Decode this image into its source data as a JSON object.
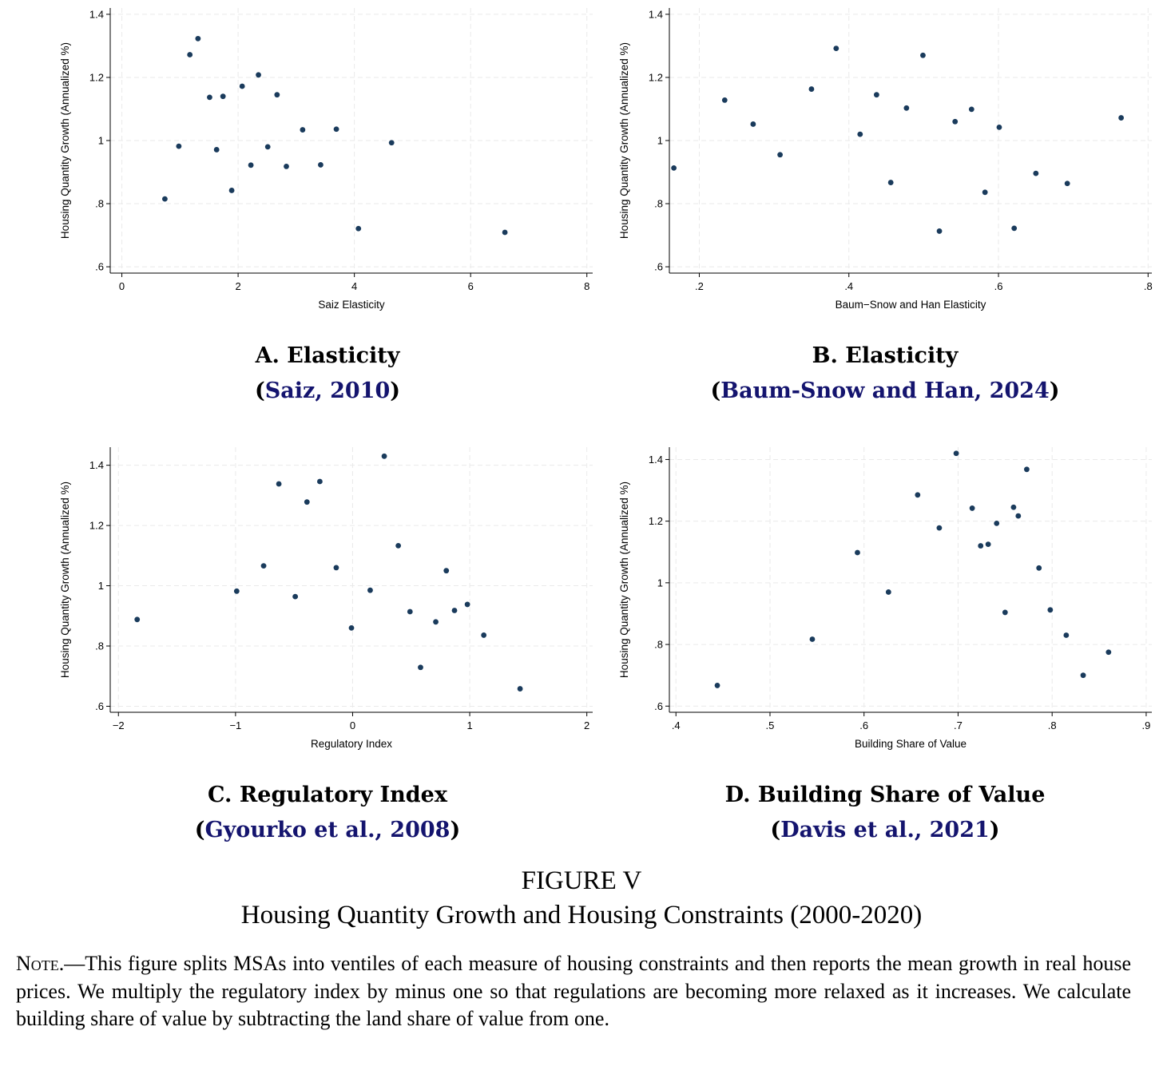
{
  "chart_data": [
    {
      "type": "scatter",
      "xlabel": "Saiz Elasticity",
      "ylabel": "Housing Quantity Growth (Annualized %)",
      "xlim": [
        -0.2,
        8.1
      ],
      "ylim": [
        0.58,
        1.42
      ],
      "xticks": [
        0,
        2,
        4,
        6,
        8
      ],
      "xtick_labels": [
        "0",
        "2",
        "4",
        "6",
        "8"
      ],
      "yticks": [
        0.6,
        0.8,
        1.0,
        1.2,
        1.4
      ],
      "ytick_labels": [
        ".6",
        ".8",
        "1",
        "1.2",
        "1.4"
      ],
      "grid": true,
      "caption_title": "A. Elasticity",
      "caption_open": "(",
      "caption_cite": "Saiz, 2010",
      "caption_close": ")",
      "points": [
        [
          0.74,
          0.815
        ],
        [
          0.98,
          0.982
        ],
        [
          1.17,
          1.272
        ],
        [
          1.31,
          1.323
        ],
        [
          1.51,
          1.137
        ],
        [
          1.63,
          0.971
        ],
        [
          1.74,
          1.14
        ],
        [
          1.89,
          0.842
        ],
        [
          2.07,
          1.172
        ],
        [
          2.22,
          0.922
        ],
        [
          2.35,
          1.208
        ],
        [
          2.51,
          0.98
        ],
        [
          2.67,
          1.145
        ],
        [
          2.83,
          0.918
        ],
        [
          3.11,
          1.034
        ],
        [
          3.42,
          0.923
        ],
        [
          3.69,
          1.036
        ],
        [
          4.07,
          0.721
        ],
        [
          4.64,
          0.993
        ],
        [
          6.59,
          0.709
        ]
      ]
    },
    {
      "type": "scatter",
      "xlabel": "Baum−Snow and Han Elasticity",
      "ylabel": "Housing Quantity Growth (Annualized %)",
      "xlim": [
        0.16,
        0.805
      ],
      "ylim": [
        0.58,
        1.42
      ],
      "xticks": [
        0.2,
        0.4,
        0.6,
        0.8
      ],
      "xtick_labels": [
        ".2",
        ".4",
        ".6",
        ".8"
      ],
      "yticks": [
        0.6,
        0.8,
        1.0,
        1.2,
        1.4
      ],
      "ytick_labels": [
        ".6",
        ".8",
        "1",
        "1.2",
        "1.4"
      ],
      "grid": true,
      "caption_title": "B. Elasticity",
      "caption_open": "(",
      "caption_cite": "Baum-Snow and Han, 2024",
      "caption_close": ")",
      "points": [
        [
          0.166,
          0.913
        ],
        [
          0.234,
          1.128
        ],
        [
          0.272,
          1.052
        ],
        [
          0.308,
          0.955
        ],
        [
          0.35,
          1.163
        ],
        [
          0.383,
          1.292
        ],
        [
          0.415,
          1.02
        ],
        [
          0.437,
          1.145
        ],
        [
          0.456,
          0.867
        ],
        [
          0.477,
          1.103
        ],
        [
          0.499,
          1.27
        ],
        [
          0.521,
          0.713
        ],
        [
          0.542,
          1.06
        ],
        [
          0.564,
          1.099
        ],
        [
          0.582,
          0.836
        ],
        [
          0.601,
          1.042
        ],
        [
          0.621,
          0.722
        ],
        [
          0.65,
          0.896
        ],
        [
          0.692,
          0.864
        ],
        [
          0.764,
          1.072
        ]
      ]
    },
    {
      "type": "scatter",
      "xlabel": "Regulatory Index",
      "ylabel": "Housing Quantity Growth (Annualized %)",
      "xlim": [
        -2.07,
        2.05
      ],
      "ylim": [
        0.58,
        1.46
      ],
      "xticks": [
        -2,
        -1,
        0,
        1,
        2
      ],
      "xtick_labels": [
        "−2",
        "−1",
        "0",
        "1",
        "2"
      ],
      "yticks": [
        0.6,
        0.8,
        1.0,
        1.2,
        1.4
      ],
      "ytick_labels": [
        ".6",
        ".8",
        "1",
        "1.2",
        "1.4"
      ],
      "grid": true,
      "caption_title": "C. Regulatory Index",
      "caption_open": "(",
      "caption_cite": "Gyourko et al., 2008",
      "caption_close": ")",
      "points": [
        [
          -1.84,
          0.888
        ],
        [
          -0.99,
          0.982
        ],
        [
          -0.76,
          1.066
        ],
        [
          -0.63,
          1.338
        ],
        [
          -0.49,
          0.964
        ],
        [
          -0.39,
          1.278
        ],
        [
          -0.28,
          1.346
        ],
        [
          -0.14,
          1.06
        ],
        [
          -0.01,
          0.86
        ],
        [
          0.15,
          0.985
        ],
        [
          0.27,
          1.43
        ],
        [
          0.39,
          1.133
        ],
        [
          0.49,
          0.914
        ],
        [
          0.58,
          0.729
        ],
        [
          0.71,
          0.88
        ],
        [
          0.8,
          1.05
        ],
        [
          0.87,
          0.918
        ],
        [
          0.98,
          0.938
        ],
        [
          1.12,
          0.836
        ],
        [
          1.43,
          0.658
        ]
      ]
    },
    {
      "type": "scatter",
      "xlabel": "Building Share of Value",
      "ylabel": "Housing Quantity Growth (Annualized %)",
      "xlim": [
        0.393,
        0.906
      ],
      "ylim": [
        0.58,
        1.44
      ],
      "xticks": [
        0.4,
        0.5,
        0.6,
        0.7,
        0.8,
        0.9
      ],
      "xtick_labels": [
        ".4",
        ".5",
        ".6",
        ".7",
        ".8",
        ".9"
      ],
      "yticks": [
        0.6,
        0.8,
        1.0,
        1.2,
        1.4
      ],
      "ytick_labels": [
        ".6",
        ".8",
        "1",
        "1.2",
        "1.4"
      ],
      "grid": true,
      "caption_title": "D. Building Share of Value",
      "caption_open": "(",
      "caption_cite": "Davis et al., 2021",
      "caption_close": ")",
      "points": [
        [
          0.444,
          0.667
        ],
        [
          0.545,
          0.817
        ],
        [
          0.593,
          1.098
        ],
        [
          0.626,
          0.97
        ],
        [
          0.657,
          1.285
        ],
        [
          0.68,
          1.178
        ],
        [
          0.698,
          1.42
        ],
        [
          0.715,
          1.242
        ],
        [
          0.724,
          1.12
        ],
        [
          0.732,
          1.125
        ],
        [
          0.741,
          1.193
        ],
        [
          0.75,
          0.904
        ],
        [
          0.759,
          1.245
        ],
        [
          0.764,
          1.217
        ],
        [
          0.773,
          1.368
        ],
        [
          0.786,
          1.048
        ],
        [
          0.798,
          0.912
        ],
        [
          0.815,
          0.83
        ],
        [
          0.833,
          0.7
        ],
        [
          0.86,
          0.775
        ]
      ]
    }
  ],
  "figure": {
    "title": "FIGURE V",
    "subtitle": "Housing Quantity Growth and Housing Constraints (2000-2020)",
    "note_lead": "Note.",
    "note_text": "—This figure splits MSAs into ventiles of each measure of housing constraints and then reports the mean growth in real house prices.  We multiply the regulatory index by minus one so that regulations are becoming more relaxed as it increases.  We calculate building share of value by subtracting the land share of value from one."
  },
  "colors": {
    "marker": "#1a3b5c",
    "grid": "#eaeaea",
    "cite": "#14146e"
  }
}
